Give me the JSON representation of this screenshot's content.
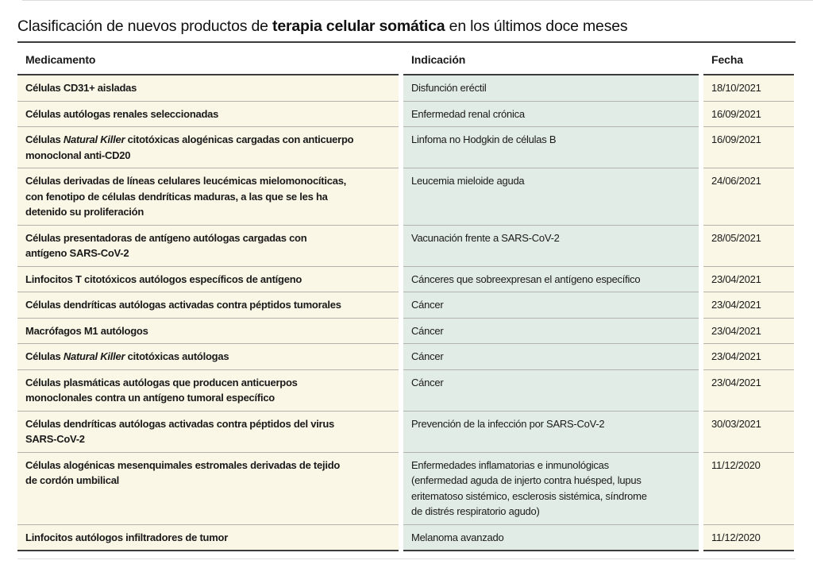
{
  "title": {
    "prefix": "Clasificación de nuevos productos de ",
    "highlight": "terapia celular somática",
    "suffix": " en los últimos doce meses"
  },
  "chart_data": {
    "type": "table",
    "title": "Clasificación de nuevos productos de terapia celular somática en los últimos doce meses",
    "columns": [
      "Medicamento",
      "Indicación",
      "Fecha"
    ],
    "italic_phrase": "Natural Killer",
    "rows": [
      [
        "Células CD31+ aisladas",
        "Disfunción eréctil",
        "18/10/2021"
      ],
      [
        "Células autólogas renales seleccionadas",
        "Enfermedad renal crónica",
        "16/09/2021"
      ],
      [
        "Células Natural Killer citotóxicas alogénicas cargadas con anticuerpo\nmonoclonal anti-CD20",
        "Linfoma no Hodgkin de células B",
        "16/09/2021"
      ],
      [
        "Células derivadas de líneas celulares leucémicas mielomonocíticas,\ncon fenotipo de células dendríticas maduras, a las que se les ha\ndetenido su proliferación",
        "Leucemia mieloide aguda",
        "24/06/2021"
      ],
      [
        "Células presentadoras de antígeno autólogas cargadas con\nantígeno SARS-CoV-2",
        "Vacunación frente a SARS-CoV-2",
        "28/05/2021"
      ],
      [
        "Linfocitos T citotóxicos autólogos específicos de antígeno",
        "Cánceres que sobreexpresan el antígeno específico",
        "23/04/2021"
      ],
      [
        "Células dendríticas autólogas activadas contra péptidos tumorales",
        "Cáncer",
        "23/04/2021"
      ],
      [
        "Macrófagos M1 autólogos",
        "Cáncer",
        "23/04/2021"
      ],
      [
        "Células Natural Killer citotóxicas autólogas",
        "Cáncer",
        "23/04/2021"
      ],
      [
        "Células plasmáticas autólogas que producen anticuerpos\nmonoclonales contra un antígeno tumoral específico",
        "Cáncer",
        "23/04/2021"
      ],
      [
        "Células dendríticas autólogas activadas contra péptidos del virus\nSARS-CoV-2",
        "Prevención de la infección por SARS-CoV-2",
        "30/03/2021"
      ],
      [
        "Células alogénicas mesenquimales estromales derivadas de tejido\nde cordón umbilical",
        "Enfermedades inflamatorias e inmunológicas\n(enfermedad aguda de injerto contra huésped, lupus\neritematoso sistémico, esclerosis sistémica, síndrome\nde distrés respiratorio agudo)",
        "11/12/2020"
      ],
      [
        "Linfocitos autólogos infiltradores de tumor",
        "Melanoma avanzado",
        "11/12/2020"
      ]
    ]
  },
  "styles": {
    "colors": {
      "text": "#1a1a1a",
      "rule-dark": "#3b3b3b",
      "row-divider": "#b3b2ac",
      "medicamento-bg": "#faf7e6",
      "indicacion-bg": "#e2ece6",
      "fecha-bg": "#faf7e6"
    }
  }
}
